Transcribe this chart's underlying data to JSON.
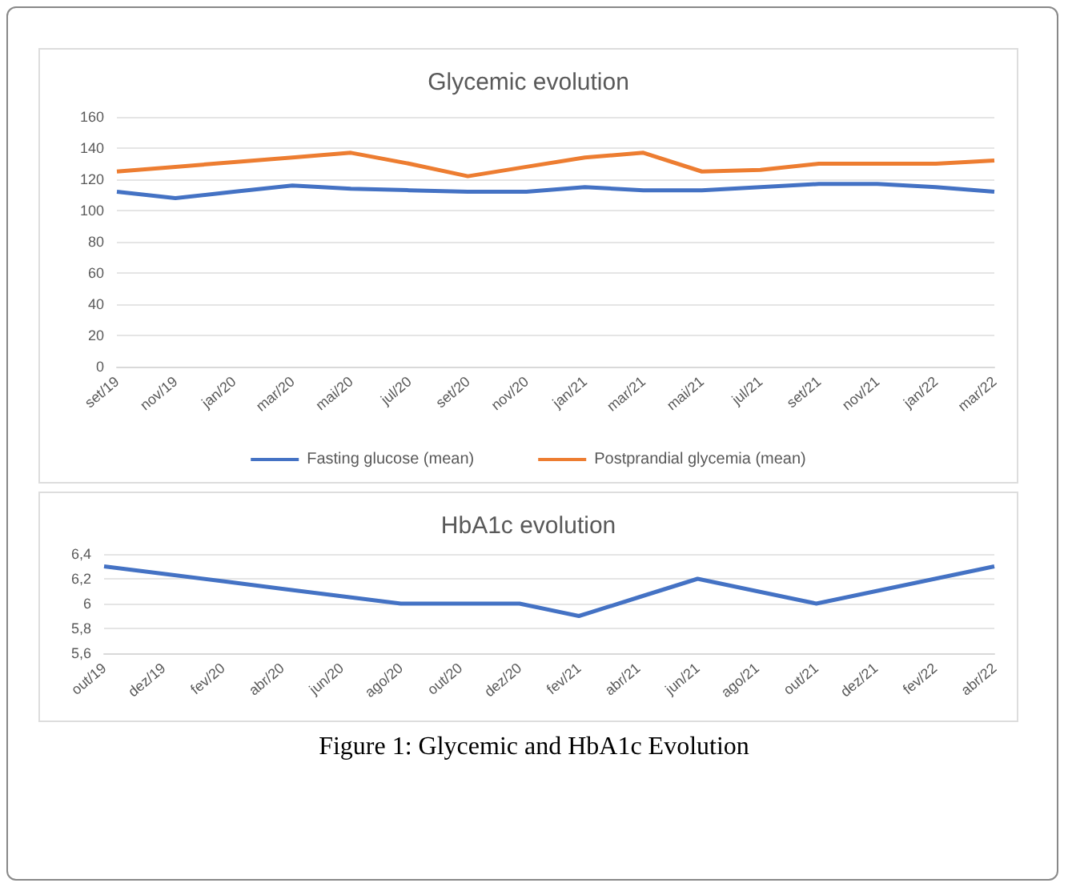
{
  "chart_data": [
    {
      "type": "line",
      "title": "Glycemic evolution",
      "categories": [
        "set/19",
        "nov/19",
        "jan/20",
        "mar/20",
        "mai/20",
        "jul/20",
        "set/20",
        "nov/20",
        "jan/21",
        "mar/21",
        "mai/21",
        "jul/21",
        "set/21",
        "nov/21",
        "jan/22",
        "mar/22"
      ],
      "series": [
        {
          "name": "Fasting glucose (mean)",
          "color": "#4472c4",
          "values": [
            112,
            108,
            112,
            116,
            114,
            113,
            112,
            112,
            115,
            113,
            113,
            115,
            117,
            117,
            115,
            112
          ]
        },
        {
          "name": "Postprandial glycemia (mean)",
          "color": "#ed7d31",
          "values": [
            125,
            128,
            131,
            134,
            137,
            130,
            122,
            128,
            134,
            137,
            125,
            126,
            130,
            130,
            130,
            132
          ]
        }
      ],
      "ylim": [
        0,
        160
      ],
      "yticks": [
        0,
        20,
        40,
        60,
        80,
        100,
        120,
        140,
        160
      ],
      "grid": "y",
      "legend": "bottom",
      "marker": "none",
      "line_style": "solid"
    },
    {
      "type": "line",
      "title": "HbA1c evolution",
      "categories": [
        "out/19",
        "dez/19",
        "fev/20",
        "abr/20",
        "jun/20",
        "ago/20",
        "out/20",
        "dez/20",
        "fev/21",
        "abr/21",
        "jun/21",
        "ago/21",
        "out/21",
        "dez/21",
        "fev/22",
        "abr/22"
      ],
      "series": [
        {
          "color": "#4472c4",
          "values": [
            6.3,
            6.24,
            6.18,
            6.12,
            6.06,
            6.0,
            6.0,
            6.0,
            5.9,
            6.05,
            6.2,
            6.1,
            6.0,
            6.1,
            6.2,
            6.3
          ]
        }
      ],
      "ylim": [
        5.6,
        6.4
      ],
      "yticks": [
        {
          "value": 5.6,
          "label": "5,6"
        },
        {
          "value": 5.8,
          "label": "5,8"
        },
        6,
        {
          "value": 6.2,
          "label": "6,2"
        },
        {
          "value": 6.4,
          "label": "6,4"
        }
      ],
      "grid": "y",
      "legend": false,
      "marker": "none",
      "line_style": "solid",
      "annotations": [
        "Figure 1: Glycemic and HbA1c Evolution"
      ]
    }
  ]
}
